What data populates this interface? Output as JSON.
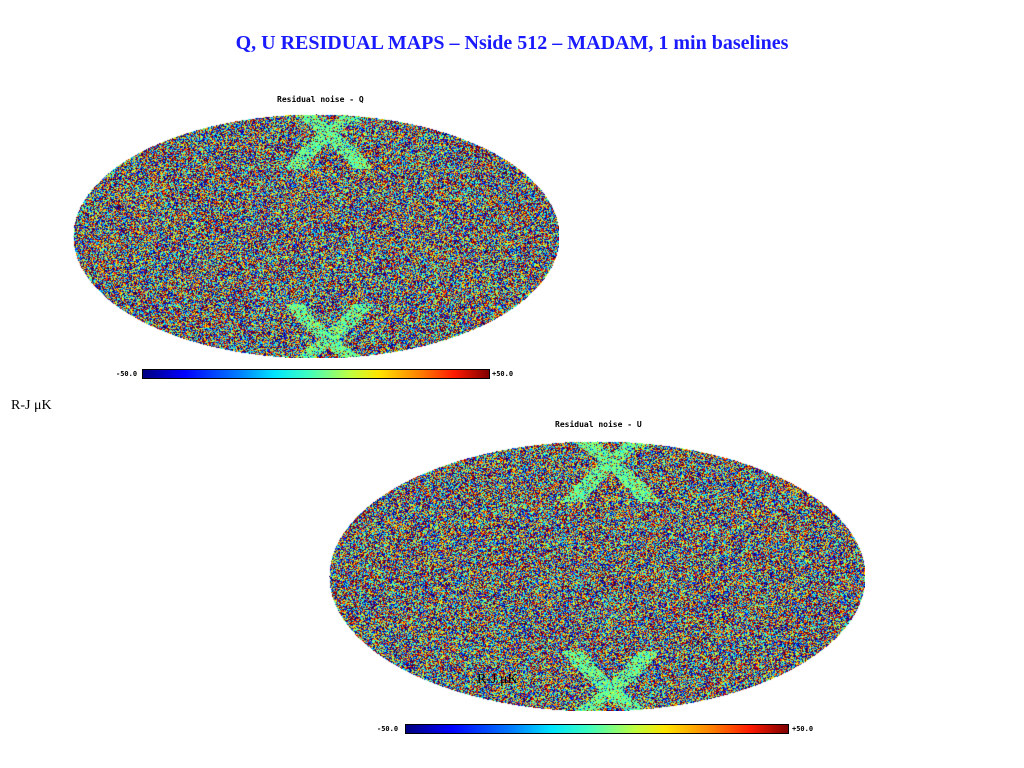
{
  "slide": {
    "title": "Q, U RESIDUAL MAPS – Nside 512 – MADAM, 1 min baselines"
  },
  "maps": {
    "q": {
      "title": "Residual noise - Q",
      "colorbar_min": "-50.0",
      "colorbar_max": "+50.0",
      "unit": "R-J μK"
    },
    "u": {
      "title": "Residual noise - U",
      "colorbar_min": "-50.0",
      "colorbar_max": "+50.0",
      "unit": "R-J μK"
    }
  }
}
